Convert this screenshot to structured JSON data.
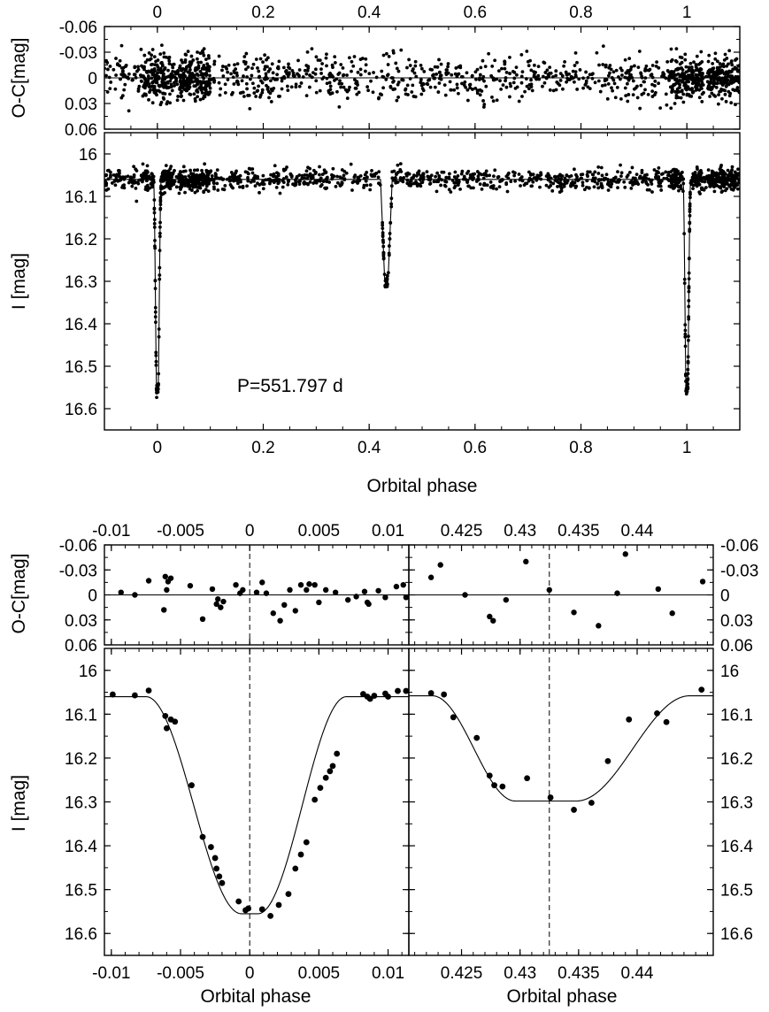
{
  "figure": {
    "period_label": "P=551.797 d"
  },
  "chart_data": [
    {
      "id": "full_oc",
      "type": "scatter",
      "ylabel": "O-C[mag]",
      "xlabel": "",
      "xlim": [
        -0.1,
        1.1
      ],
      "ylim": [
        -0.06,
        0.06
      ],
      "y_inverted": true,
      "y_ticks": [
        -0.06,
        -0.03,
        0,
        0.03,
        0.06
      ],
      "y_tick_labels": [
        "-0.06",
        "-0.03",
        "0",
        "0.03",
        "0.06"
      ],
      "x_ticks_top": [
        0,
        0.2,
        0.4,
        0.6,
        0.8,
        1
      ],
      "x_tick_labels_top": [
        "0",
        "0.2",
        "0.4",
        "0.6",
        "0.8",
        "1"
      ],
      "reference_line_y": 0,
      "description_of_points": "dense scatter of residuals around 0 with spread about +/-0.03, denser near phases 0, 0.08 and 1.0"
    },
    {
      "id": "full_lc",
      "type": "scatter",
      "ylabel": "I [mag]",
      "xlabel": "Orbital phase",
      "xlim": [
        -0.1,
        1.1
      ],
      "ylim": [
        15.95,
        16.65
      ],
      "y_inverted": true,
      "y_ticks": [
        16,
        16.1,
        16.2,
        16.3,
        16.4,
        16.5,
        16.6
      ],
      "y_tick_labels": [
        "16",
        "16.1",
        "16.2",
        "16.3",
        "16.4",
        "16.5",
        "16.6"
      ],
      "x_ticks": [
        0,
        0.2,
        0.4,
        0.6,
        0.8,
        1
      ],
      "x_tick_labels": [
        "0",
        "0.2",
        "0.4",
        "0.6",
        "0.8",
        "1"
      ],
      "baseline_mag": 16.06,
      "primary_eclipse": {
        "phase": 0.0,
        "depth_mag": 16.555
      },
      "secondary_eclipse": {
        "phase": 0.4325,
        "depth_mag": 16.3
      },
      "annotation": "P=551.797 d"
    },
    {
      "id": "zoom_primary_oc",
      "type": "scatter",
      "ylabel": "O-C[mag]",
      "xlim": [
        -0.0105,
        0.0115
      ],
      "ylim": [
        -0.06,
        0.06
      ],
      "y_inverted": true,
      "y_ticks": [
        -0.06,
        -0.03,
        0,
        0.03,
        0.06
      ],
      "y_tick_labels": [
        "-0.06",
        "-0.03",
        "0",
        "0.03",
        "0.06"
      ],
      "x_ticks_top": [
        -0.01,
        -0.005,
        0,
        0.005,
        0.01
      ],
      "x_tick_labels_top": [
        "-0.01",
        "-0.005",
        "0",
        "0.005",
        "0.01"
      ],
      "reference_line_y": 0,
      "dashed_line_x": 0,
      "points": [
        [
          -0.0093,
          -0.003
        ],
        [
          -0.0083,
          0.0
        ],
        [
          -0.0073,
          -0.017
        ],
        [
          -0.0061,
          -0.022
        ],
        [
          -0.0059,
          -0.016
        ],
        [
          -0.0057,
          -0.02
        ],
        [
          -0.006,
          -0.006
        ],
        [
          -0.0062,
          0.018
        ],
        [
          -0.0043,
          -0.011
        ],
        [
          -0.0034,
          0.029
        ],
        [
          -0.0027,
          -0.007
        ],
        [
          -0.0023,
          0.005
        ],
        [
          -0.0021,
          0.015
        ],
        [
          -0.0019,
          0.008
        ],
        [
          -0.0024,
          0.011
        ],
        [
          -0.001,
          -0.012
        ],
        [
          -0.0007,
          -0.002
        ],
        [
          -0.0005,
          -0.006
        ],
        [
          0.0005,
          -0.003
        ],
        [
          0.0009,
          -0.015
        ],
        [
          0.0012,
          -0.002
        ],
        [
          0.0017,
          0.022
        ],
        [
          0.0022,
          0.031
        ],
        [
          0.0025,
          0.012
        ],
        [
          0.0029,
          -0.006
        ],
        [
          0.0033,
          0.019
        ],
        [
          0.0037,
          -0.012
        ],
        [
          0.0041,
          -0.006
        ],
        [
          0.0043,
          -0.013
        ],
        [
          0.0047,
          -0.012
        ],
        [
          0.005,
          0.009
        ],
        [
          0.0055,
          -0.006
        ],
        [
          0.0062,
          -0.003
        ],
        [
          0.0071,
          0.006
        ],
        [
          0.0077,
          0.002
        ],
        [
          0.0083,
          -0.004
        ],
        [
          0.0085,
          0.009
        ],
        [
          0.0086,
          0.011
        ],
        [
          0.0093,
          -0.005
        ],
        [
          0.0098,
          0.003
        ],
        [
          0.0106,
          -0.01
        ],
        [
          0.0111,
          -0.012
        ],
        [
          0.0113,
          0.003
        ]
      ]
    },
    {
      "id": "zoom_secondary_oc",
      "type": "scatter",
      "ylabel": "",
      "xlim": [
        0.4205,
        0.4465
      ],
      "ylim": [
        -0.06,
        0.06
      ],
      "y_inverted": true,
      "y_ticks": [
        -0.06,
        -0.03,
        0,
        0.03,
        0.06
      ],
      "y_tick_labels": [
        "-0.06",
        "-0.03",
        "0",
        "0.03",
        "0.06"
      ],
      "x_ticks_top": [
        0.425,
        0.43,
        0.435,
        0.44
      ],
      "x_tick_labels_top": [
        "0.425",
        "0.43",
        "0.435",
        "0.44"
      ],
      "reference_line_y": 0,
      "dashed_line_x": 0.4325,
      "points": [
        [
          0.4224,
          -0.021
        ],
        [
          0.4232,
          -0.036
        ],
        [
          0.4253,
          0.0
        ],
        [
          0.4274,
          0.026
        ],
        [
          0.4277,
          0.031
        ],
        [
          0.4288,
          0.006
        ],
        [
          0.4305,
          -0.04
        ],
        [
          0.4325,
          -0.006
        ],
        [
          0.4346,
          0.021
        ],
        [
          0.4367,
          0.037
        ],
        [
          0.4383,
          -0.002
        ],
        [
          0.439,
          -0.049
        ],
        [
          0.4418,
          -0.007
        ],
        [
          0.443,
          0.022
        ],
        [
          0.4456,
          -0.016
        ]
      ]
    },
    {
      "id": "zoom_primary_lc",
      "type": "scatter",
      "ylabel": "I [mag]",
      "xlabel": "Orbital phase",
      "xlim": [
        -0.0105,
        0.0115
      ],
      "ylim": [
        15.95,
        16.65
      ],
      "y_inverted": true,
      "y_ticks": [
        16,
        16.1,
        16.2,
        16.3,
        16.4,
        16.5,
        16.6
      ],
      "y_tick_labels": [
        "16",
        "16.1",
        "16.2",
        "16.3",
        "16.4",
        "16.5",
        "16.6"
      ],
      "x_ticks": [
        -0.01,
        -0.005,
        0,
        0.005,
        0.01
      ],
      "x_tick_labels": [
        "-0.01",
        "-0.005",
        "0",
        "0.005",
        "0.01"
      ],
      "dashed_line_x": 0,
      "model": {
        "baseline": 16.06,
        "bottom": 16.555,
        "ingress_start": -0.0075,
        "egress_end": 0.007,
        "flat_half_width": 0.0006
      },
      "points": [
        [
          -0.0099,
          16.055
        ],
        [
          -0.0083,
          16.057
        ],
        [
          -0.0073,
          16.046
        ],
        [
          -0.0061,
          16.104
        ],
        [
          -0.006,
          16.132
        ],
        [
          -0.0057,
          16.112
        ],
        [
          -0.0054,
          16.117
        ],
        [
          -0.0042,
          16.262
        ],
        [
          -0.0034,
          16.38
        ],
        [
          -0.0028,
          16.403
        ],
        [
          -0.0025,
          16.428
        ],
        [
          -0.0024,
          16.452
        ],
        [
          -0.0022,
          16.47
        ],
        [
          -0.002,
          16.485
        ],
        [
          -0.0008,
          16.527
        ],
        [
          -0.0003,
          16.547
        ],
        [
          -0.0001,
          16.543
        ],
        [
          0.0009,
          16.545
        ],
        [
          0.0015,
          16.56
        ],
        [
          0.0021,
          16.535
        ],
        [
          0.0028,
          16.51
        ],
        [
          0.0033,
          16.452
        ],
        [
          0.0037,
          16.42
        ],
        [
          0.0041,
          16.392
        ],
        [
          0.0047,
          16.295
        ],
        [
          0.0051,
          16.268
        ],
        [
          0.0055,
          16.245
        ],
        [
          0.0058,
          16.23
        ],
        [
          0.006,
          16.218
        ],
        [
          0.0063,
          16.19
        ],
        [
          0.0082,
          16.054
        ],
        [
          0.0085,
          16.06
        ],
        [
          0.0087,
          16.065
        ],
        [
          0.009,
          16.058
        ],
        [
          0.0098,
          16.053
        ],
        [
          0.01,
          16.06
        ],
        [
          0.0107,
          16.047
        ],
        [
          0.0113,
          16.047
        ]
      ]
    },
    {
      "id": "zoom_secondary_lc",
      "type": "scatter",
      "ylabel": "",
      "xlabel": "Orbital phase",
      "xlim": [
        0.4205,
        0.4465
      ],
      "ylim": [
        15.95,
        16.65
      ],
      "y_inverted": true,
      "y_ticks": [
        16,
        16.1,
        16.2,
        16.3,
        16.4,
        16.5,
        16.6
      ],
      "y_tick_labels": [
        "16",
        "16.1",
        "16.2",
        "16.3",
        "16.4",
        "16.5",
        "16.6"
      ],
      "x_ticks": [
        0.425,
        0.43,
        0.435,
        0.44
      ],
      "x_tick_labels": [
        "0.425",
        "0.43",
        "0.435",
        "0.44"
      ],
      "dashed_line_x": 0.4325,
      "model": {
        "baseline": 16.058,
        "bottom": 16.298,
        "ingress_start": 0.4225,
        "egress_end": 0.4445,
        "flat_start": 0.4296,
        "flat_end": 0.4348
      },
      "points": [
        [
          0.4224,
          16.052
        ],
        [
          0.4235,
          16.055
        ],
        [
          0.4243,
          16.107
        ],
        [
          0.4263,
          16.154
        ],
        [
          0.4274,
          16.24
        ],
        [
          0.4278,
          16.262
        ],
        [
          0.4285,
          16.265
        ],
        [
          0.4306,
          16.246
        ],
        [
          0.4326,
          16.29
        ],
        [
          0.4346,
          16.318
        ],
        [
          0.4361,
          16.302
        ],
        [
          0.4375,
          16.207
        ],
        [
          0.4393,
          16.112
        ],
        [
          0.4417,
          16.098
        ],
        [
          0.4425,
          16.118
        ],
        [
          0.4455,
          16.044
        ]
      ]
    }
  ]
}
